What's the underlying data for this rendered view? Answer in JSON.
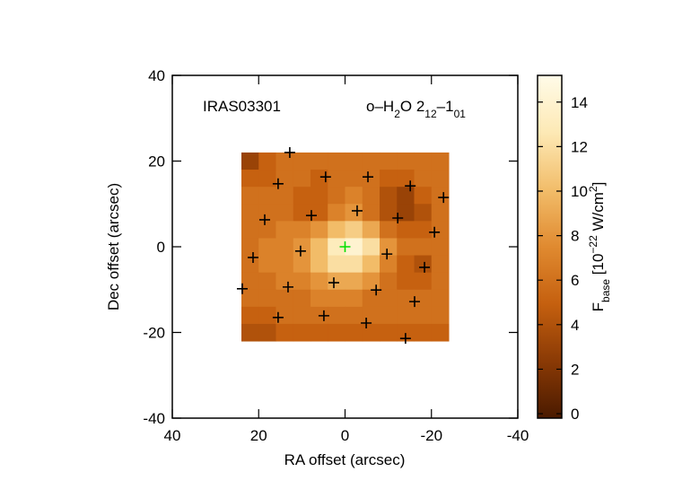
{
  "chart_data": {
    "type": "heatmap",
    "xlabel": "RA offset (arcsec)",
    "ylabel": "Dec offset (arcsec)",
    "annotations": [
      [
        {
          "text": "IRAS03301"
        }
      ],
      [
        {
          "text": "o–H"
        },
        {
          "text": "2",
          "script": "sub"
        },
        {
          "text": "O 2"
        },
        {
          "text": "12",
          "script": "sub"
        },
        {
          "text": "–1"
        },
        {
          "text": "01",
          "script": "sub"
        }
      ]
    ],
    "colorbar_label": [
      {
        "text": "F"
      },
      {
        "text": "base",
        "script": "sub"
      },
      {
        "text": " [10"
      },
      {
        "text": "−22",
        "script": "sup"
      },
      {
        "text": " W/cm"
      },
      {
        "text": "2",
        "script": "sup"
      },
      {
        "text": "]"
      }
    ],
    "xlim": [
      40,
      -40
    ],
    "xticks": [
      40,
      20,
      0,
      -20,
      -40
    ],
    "ylim": [
      -40,
      40
    ],
    "yticks": [
      -40,
      -20,
      0,
      20,
      40
    ],
    "x": [
      22,
      18,
      14,
      10,
      6,
      2,
      -2,
      -6,
      -10,
      -14,
      -18,
      -22
    ],
    "y": [
      20,
      16,
      12,
      8,
      4,
      0,
      -4,
      -8,
      -12,
      -16,
      -20
    ],
    "values": [
      [
        3,
        5,
        6,
        6,
        6,
        6,
        6,
        6,
        6,
        6,
        6,
        6
      ],
      [
        5,
        5,
        6,
        6,
        5,
        6,
        6,
        6,
        5,
        5,
        6,
        6
      ],
      [
        6,
        6,
        6,
        5,
        5,
        6,
        7,
        6,
        4,
        3,
        5,
        6
      ],
      [
        6,
        6,
        6,
        5,
        5,
        7,
        8,
        6,
        4,
        3,
        4,
        6
      ],
      [
        6,
        6,
        7,
        7,
        8,
        10,
        11,
        9,
        6,
        5,
        5,
        6
      ],
      [
        6,
        7,
        7,
        8,
        10,
        13,
        14,
        12,
        8,
        6,
        6,
        6
      ],
      [
        6,
        7,
        7,
        8,
        10,
        12,
        12,
        10,
        7,
        5,
        4,
        6
      ],
      [
        6,
        6,
        7,
        7,
        8,
        9,
        9,
        8,
        6,
        5,
        5,
        6
      ],
      [
        6,
        6,
        6,
        6,
        7,
        7,
        7,
        6,
        6,
        6,
        6,
        6
      ],
      [
        5,
        5,
        6,
        6,
        6,
        6,
        6,
        6,
        6,
        6,
        6,
        6
      ],
      [
        4,
        4,
        5,
        5,
        5,
        5,
        5,
        5,
        5,
        5,
        5,
        5
      ]
    ],
    "colormap": [
      "#4a1a00",
      "#8a3a05",
      "#c5600f",
      "#e08a30",
      "#f2bd6a",
      "#fde9b5",
      "#fffbe8"
    ],
    "clim": [
      -0.2,
      15.2
    ],
    "cticks": [
      0,
      2,
      4,
      6,
      8,
      10,
      12,
      14
    ],
    "series": [
      {
        "color": "#000000",
        "x": [
          12.8,
          15.5,
          4.5,
          -5.3,
          -15.1,
          -22.8,
          18.6,
          7.8,
          -2.8,
          -12.2,
          -20.7,
          10.3,
          21.3,
          -9.7,
          -18.4,
          23.8,
          13.2,
          2.6,
          -7.2,
          -16.1,
          15.5,
          4.9,
          -4.9,
          -14.0
        ],
        "y": [
          22.0,
          14.7,
          16.3,
          16.3,
          14.2,
          11.5,
          6.3,
          7.3,
          8.4,
          6.7,
          3.4,
          -1.0,
          -2.5,
          -1.7,
          -4.8,
          -9.8,
          -9.4,
          -8.4,
          -10.1,
          -12.8,
          -16.5,
          -16.1,
          -17.8,
          -21.4
        ]
      },
      {
        "color": "#00e000",
        "x": [
          0
        ],
        "y": [
          0
        ]
      }
    ]
  }
}
